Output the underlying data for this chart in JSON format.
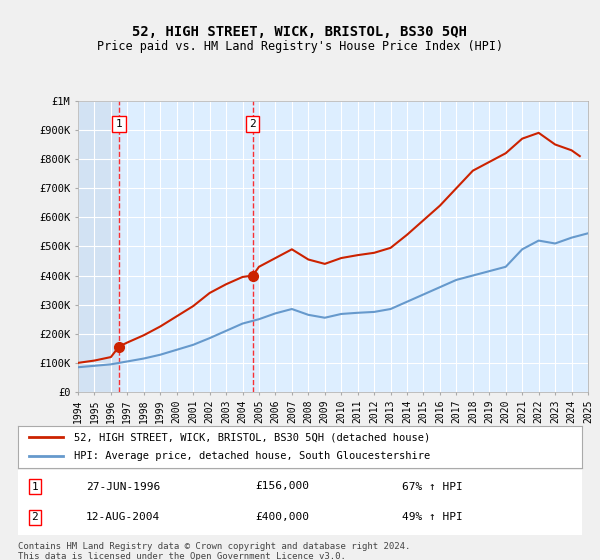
{
  "title": "52, HIGH STREET, WICK, BRISTOL, BS30 5QH",
  "subtitle": "Price paid vs. HM Land Registry's House Price Index (HPI)",
  "ylabel": "",
  "background_color": "#e8f4f8",
  "plot_bg_color": "#ddeeff",
  "grid_color": "#ffffff",
  "hatch_color": "#c8d8e8",
  "red_line_label": "52, HIGH STREET, WICK, BRISTOL, BS30 5QH (detached house)",
  "blue_line_label": "HPI: Average price, detached house, South Gloucestershire",
  "transactions": [
    {
      "num": 1,
      "date": "27-JUN-1996",
      "price": 156000,
      "pct": "67%",
      "x": 1996.49
    },
    {
      "num": 2,
      "date": "12-AUG-2004",
      "price": 400000,
      "pct": "49%",
      "x": 2004.62
    }
  ],
  "footer": "Contains HM Land Registry data © Crown copyright and database right 2024.\nThis data is licensed under the Open Government Licence v3.0.",
  "hpi_years": [
    1994,
    1995,
    1996,
    1997,
    1998,
    1999,
    2000,
    2001,
    2002,
    2003,
    2004,
    2005,
    2006,
    2007,
    2008,
    2009,
    2010,
    2011,
    2012,
    2013,
    2014,
    2015,
    2016,
    2017,
    2018,
    2019,
    2020,
    2021,
    2022,
    2023,
    2024,
    2025
  ],
  "hpi_values": [
    85000,
    90000,
    95000,
    105000,
    115000,
    128000,
    145000,
    162000,
    185000,
    210000,
    235000,
    250000,
    270000,
    285000,
    265000,
    255000,
    268000,
    272000,
    275000,
    285000,
    310000,
    335000,
    360000,
    385000,
    400000,
    415000,
    430000,
    490000,
    520000,
    510000,
    530000,
    545000
  ],
  "red_years": [
    1994,
    1995,
    1996,
    1996.49,
    1997,
    1998,
    1999,
    2000,
    2001,
    2002,
    2003,
    2004,
    2004.62,
    2005,
    2006,
    2007,
    2008,
    2009,
    2010,
    2011,
    2012,
    2013,
    2014,
    2015,
    2016,
    2017,
    2018,
    2019,
    2020,
    2021,
    2022,
    2023,
    2024,
    2024.5
  ],
  "red_values": [
    100000,
    108000,
    120000,
    156000,
    170000,
    195000,
    225000,
    260000,
    295000,
    340000,
    370000,
    395000,
    400000,
    430000,
    460000,
    490000,
    455000,
    440000,
    460000,
    470000,
    478000,
    495000,
    540000,
    590000,
    640000,
    700000,
    760000,
    790000,
    820000,
    870000,
    890000,
    850000,
    830000,
    810000
  ],
  "xlim": [
    1994,
    2025
  ],
  "ylim": [
    0,
    1000000
  ],
  "yticks": [
    0,
    100000,
    200000,
    300000,
    400000,
    500000,
    600000,
    700000,
    800000,
    900000,
    1000000
  ],
  "ytick_labels": [
    "£0",
    "£100K",
    "£200K",
    "£300K",
    "£400K",
    "£500K",
    "£600K",
    "£700K",
    "£800K",
    "£900K",
    "£1M"
  ],
  "xticks": [
    1994,
    1995,
    1996,
    1997,
    1998,
    1999,
    2000,
    2001,
    2002,
    2003,
    2004,
    2005,
    2006,
    2007,
    2008,
    2009,
    2010,
    2011,
    2012,
    2013,
    2014,
    2015,
    2016,
    2017,
    2018,
    2019,
    2020,
    2021,
    2022,
    2023,
    2024,
    2025
  ]
}
